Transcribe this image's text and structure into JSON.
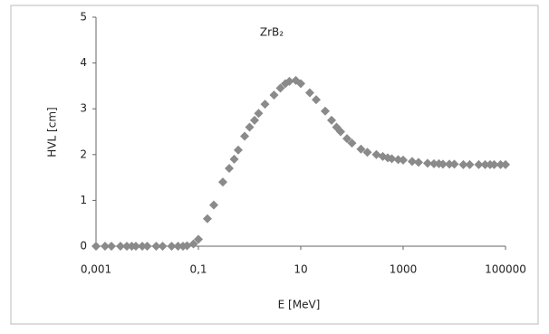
{
  "chart_data": {
    "type": "scatter",
    "title": "ZrB₂",
    "x_label": "E [MeV]",
    "y_label": "HVL [cm]",
    "xscale": "log",
    "xlim": [
      0.001,
      100000
    ],
    "ylim": [
      0,
      5
    ],
    "xticks": [
      {
        "value": 0.001,
        "label": "0,001"
      },
      {
        "value": 0.1,
        "label": "0,1"
      },
      10,
      1000,
      100000
    ],
    "yticks": [
      0,
      1,
      2,
      3,
      4,
      5
    ],
    "grid": false,
    "color": "#8a8a8a",
    "x": [
      0.001,
      0.0015,
      0.002,
      0.003,
      0.004,
      0.005,
      0.006,
      0.008,
      0.01,
      0.015,
      0.02,
      0.03,
      0.04,
      0.05,
      0.06,
      0.08,
      0.1,
      0.15,
      0.2,
      0.3,
      0.4,
      0.5,
      0.6,
      0.8,
      1,
      1.25,
      1.5,
      2,
      3,
      4,
      5,
      6,
      8,
      10,
      15,
      20,
      30,
      40,
      50,
      60,
      80,
      100,
      150,
      200,
      300,
      400,
      500,
      600,
      800,
      1000,
      1500,
      2000,
      3000,
      4000,
      5000,
      6000,
      8000,
      10000,
      15000,
      20000,
      30000,
      40000,
      50000,
      60000,
      80000,
      100000
    ],
    "values": [
      0,
      0,
      0,
      0,
      0,
      0,
      0,
      0,
      0,
      0,
      0,
      0,
      0,
      0,
      0.01,
      0.05,
      0.15,
      0.6,
      0.9,
      1.4,
      1.7,
      1.9,
      2.1,
      2.4,
      2.6,
      2.75,
      2.9,
      3.1,
      3.3,
      3.45,
      3.55,
      3.6,
      3.62,
      3.55,
      3.35,
      3.2,
      2.95,
      2.75,
      2.6,
      2.5,
      2.35,
      2.25,
      2.12,
      2.05,
      2.0,
      1.96,
      1.93,
      1.91,
      1.89,
      1.88,
      1.85,
      1.83,
      1.81,
      1.8,
      1.8,
      1.79,
      1.79,
      1.79,
      1.78,
      1.78,
      1.78,
      1.78,
      1.78,
      1.78,
      1.78,
      1.78
    ]
  }
}
